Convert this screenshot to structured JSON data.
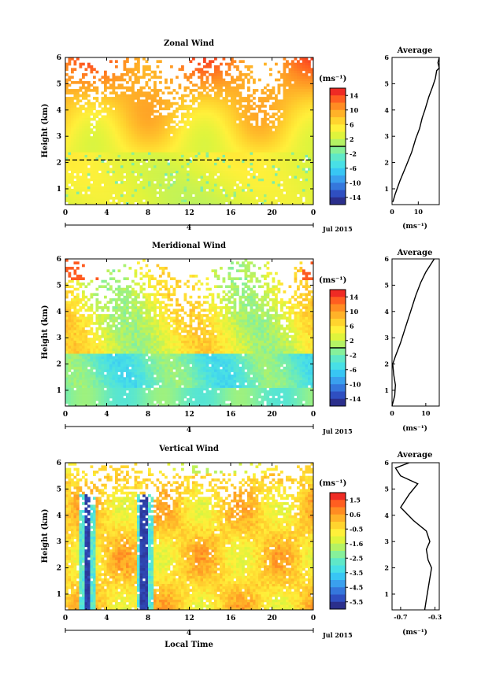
{
  "chart_data": [
    {
      "type": "heatmap",
      "title": "Zonal Wind",
      "ylabel": "Height (km)",
      "xlim": [
        0,
        24
      ],
      "ylim": [
        0.4,
        6
      ],
      "x_ticks": [
        "0",
        "4",
        "8",
        "12",
        "16",
        "20",
        "0"
      ],
      "y_ticks": [
        "1",
        "2",
        "3",
        "4",
        "5",
        "6"
      ],
      "day_label": "4",
      "date_label": "Jul 2015",
      "colorbar": {
        "unit": "(ms⁻¹)",
        "range": [
          -16,
          16
        ],
        "ticks": [
          "14",
          "10",
          "6",
          "2",
          "-2",
          "-6",
          "-10",
          "-14"
        ],
        "colors": [
          "#2b2f8c",
          "#2f4fc1",
          "#3577dc",
          "#3aa0ee",
          "#38c6f4",
          "#48e0e6",
          "#5fe8c8",
          "#86f09a",
          "#b4f264",
          "#dff43c",
          "#fff03a",
          "#ffd42e",
          "#ffb228",
          "#ff8c22",
          "#ff5e20",
          "#ef2b24"
        ]
      },
      "average_panel": {
        "title": "Average",
        "xlabel": "(ms⁻¹)",
        "x_ticks": [
          "0",
          "10"
        ],
        "xlim": [
          0,
          18
        ],
        "profile": [
          [
            0.3,
            0.5
          ],
          [
            1.2,
            0.8
          ],
          [
            3.0,
            1.3
          ],
          [
            5.5,
            1.9
          ],
          [
            7.5,
            2.4
          ],
          [
            9.0,
            2.9
          ],
          [
            10.5,
            3.3
          ],
          [
            11.5,
            3.7
          ],
          [
            12.5,
            4.0
          ],
          [
            14.0,
            4.5
          ],
          [
            15.5,
            4.9
          ],
          [
            16.5,
            5.2
          ],
          [
            17.0,
            5.5
          ],
          [
            18.0,
            5.6
          ],
          [
            17.5,
            5.8
          ],
          [
            18.0,
            6.0
          ]
        ]
      }
    },
    {
      "type": "heatmap",
      "title": "Meridional Wind",
      "ylabel": "Height (km)",
      "xlim": [
        0,
        24
      ],
      "ylim": [
        0.4,
        6
      ],
      "x_ticks": [
        "0",
        "4",
        "8",
        "12",
        "16",
        "20",
        "0"
      ],
      "y_ticks": [
        "1",
        "2",
        "3",
        "4",
        "5",
        "6"
      ],
      "day_label": "4",
      "date_label": "Jul 2015",
      "colorbar": {
        "unit": "(ms⁻¹)",
        "range": [
          -16,
          16
        ],
        "ticks": [
          "14",
          "10",
          "6",
          "2",
          "-2",
          "-6",
          "-10",
          "-14"
        ],
        "colors": [
          "#2b2f8c",
          "#2f4fc1",
          "#3577dc",
          "#3aa0ee",
          "#38c6f4",
          "#48e0e6",
          "#5fe8c8",
          "#86f09a",
          "#b4f264",
          "#dff43c",
          "#fff03a",
          "#ffd42e",
          "#ffb228",
          "#ff8c22",
          "#ff5e20",
          "#ef2b24"
        ]
      },
      "average_panel": {
        "title": "Average",
        "xlabel": "(ms⁻¹)",
        "x_ticks": [
          "0",
          "10"
        ],
        "xlim": [
          0,
          14
        ],
        "profile": [
          [
            0.0,
            0.4
          ],
          [
            0.8,
            0.8
          ],
          [
            1.0,
            1.2
          ],
          [
            0.5,
            1.6
          ],
          [
            0.2,
            2.0
          ],
          [
            1.0,
            2.3
          ],
          [
            2.5,
            2.8
          ],
          [
            4.0,
            3.4
          ],
          [
            5.5,
            4.0
          ],
          [
            7.0,
            4.6
          ],
          [
            8.5,
            5.1
          ],
          [
            10.0,
            5.5
          ],
          [
            11.5,
            5.8
          ],
          [
            12.5,
            6.0
          ]
        ]
      }
    },
    {
      "type": "heatmap",
      "title": "Vertical Wind",
      "ylabel": "Height (km)",
      "xlabel": "Local Time",
      "xlim": [
        0,
        24
      ],
      "ylim": [
        0.4,
        6
      ],
      "x_ticks": [
        "0",
        "4",
        "8",
        "12",
        "16",
        "20",
        "0"
      ],
      "y_ticks": [
        "1",
        "2",
        "3",
        "4",
        "5",
        "6"
      ],
      "day_label": "4",
      "date_label": "Jul 2015",
      "colorbar": {
        "unit": "(ms⁻¹)",
        "range": [
          -6,
          2
        ],
        "ticks": [
          "1.5",
          "0.6",
          "-0.5",
          "-1.6",
          "-2.5",
          "-3.5",
          "-4.5",
          "-5.5"
        ],
        "colors": [
          "#2b2f8c",
          "#2f4fc1",
          "#3577dc",
          "#3aa0ee",
          "#38c6f4",
          "#48e0e6",
          "#5fe8c8",
          "#86f09a",
          "#b4f264",
          "#dff43c",
          "#fff03a",
          "#ffd42e",
          "#ffb228",
          "#ff8c22",
          "#ff5e20",
          "#ef2b24"
        ]
      },
      "average_panel": {
        "title": "Average",
        "xlabel": "(ms⁻¹)",
        "x_ticks": [
          "-0.7",
          "-0.3"
        ],
        "xlim": [
          -0.8,
          -0.25
        ],
        "profile": [
          [
            -0.42,
            0.4
          ],
          [
            -0.4,
            0.8
          ],
          [
            -0.38,
            1.2
          ],
          [
            -0.36,
            1.6
          ],
          [
            -0.34,
            2.0
          ],
          [
            -0.38,
            2.3
          ],
          [
            -0.4,
            2.7
          ],
          [
            -0.36,
            3.0
          ],
          [
            -0.4,
            3.4
          ],
          [
            -0.55,
            3.8
          ],
          [
            -0.7,
            4.3
          ],
          [
            -0.6,
            4.8
          ],
          [
            -0.5,
            5.2
          ],
          [
            -0.7,
            5.5
          ],
          [
            -0.76,
            5.8
          ],
          [
            -0.6,
            6.0
          ]
        ]
      }
    }
  ]
}
